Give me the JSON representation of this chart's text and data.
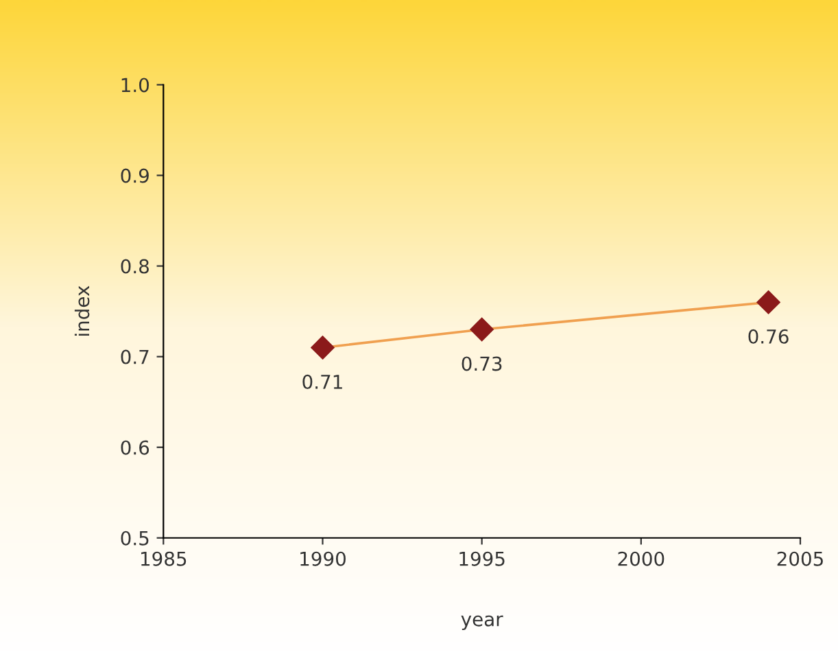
{
  "chart_data": {
    "type": "line",
    "xlabel": "year",
    "ylabel": "index",
    "x": [
      1990,
      1995,
      2004
    ],
    "series": [
      {
        "color": "#f0a050",
        "colors": [
          "#8b1a1a",
          "#8b1a1a",
          "#8b1a1a"
        ],
        "values": [
          0.71,
          0.73,
          0.76
        ]
      }
    ],
    "marker": "diamond",
    "line_style": "solid",
    "data_labels": true,
    "grid": false,
    "xlim": [
      1985,
      2005
    ],
    "xticks": [
      1985,
      1990,
      1995,
      2000,
      2005
    ],
    "ylim": [
      0.5,
      1.0
    ],
    "yticks": [
      0.5,
      0.6,
      0.7,
      0.8,
      0.9,
      {
        "value": 1.0,
        "label": "1.0"
      }
    ]
  }
}
